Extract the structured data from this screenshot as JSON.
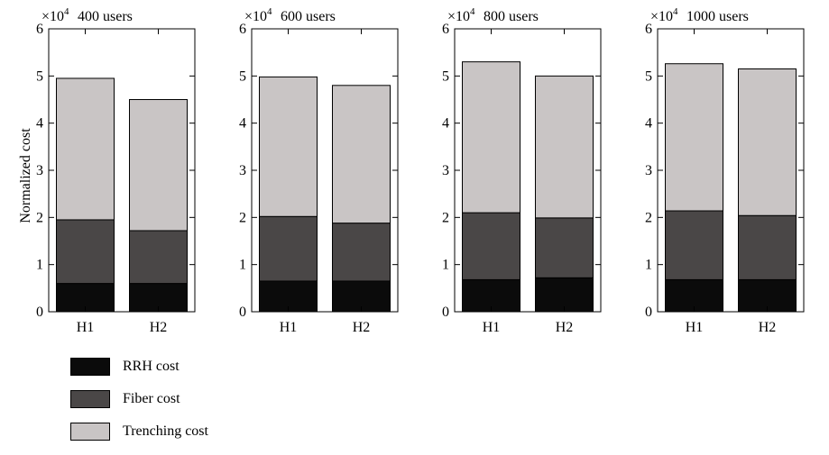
{
  "chart_data": {
    "type": "bar",
    "stacked": true,
    "ylabel": "Normalized cost",
    "y_multiplier": "×10",
    "y_multiplier_exp": "4",
    "ylim": [
      0,
      6
    ],
    "yticks": [
      "0",
      "1",
      "2",
      "3",
      "4",
      "5",
      "6"
    ],
    "categories": [
      "H1",
      "H2"
    ],
    "series_order": [
      "RRH cost",
      "Fiber cost",
      "Trenching cost"
    ],
    "colors": {
      "RRH cost": "#0b0b0b",
      "Fiber cost": "#4a4747",
      "Trenching cost": "#c9c5c5"
    },
    "panels": [
      {
        "title": "400 users",
        "series": [
          {
            "name": "RRH cost",
            "values": [
              0.6,
              0.6
            ]
          },
          {
            "name": "Fiber cost",
            "values": [
              1.35,
              1.12
            ]
          },
          {
            "name": "Trenching cost",
            "values": [
              3.0,
              2.78
            ]
          }
        ]
      },
      {
        "title": "600 users",
        "series": [
          {
            "name": "RRH cost",
            "values": [
              0.65,
              0.65
            ]
          },
          {
            "name": "Fiber cost",
            "values": [
              1.37,
              1.23
            ]
          },
          {
            "name": "Trenching cost",
            "values": [
              2.96,
              2.92
            ]
          }
        ]
      },
      {
        "title": "800 users",
        "series": [
          {
            "name": "RRH cost",
            "values": [
              0.68,
              0.72
            ]
          },
          {
            "name": "Fiber cost",
            "values": [
              1.42,
              1.27
            ]
          },
          {
            "name": "Trenching cost",
            "values": [
              3.2,
              3.01
            ]
          }
        ]
      },
      {
        "title": "1000 users",
        "series": [
          {
            "name": "RRH cost",
            "values": [
              0.68,
              0.68
            ]
          },
          {
            "name": "Fiber cost",
            "values": [
              1.46,
              1.36
            ]
          },
          {
            "name": "Trenching cost",
            "values": [
              3.12,
              3.11
            ]
          }
        ]
      }
    ]
  },
  "legend": {
    "items": [
      {
        "label": "RRH cost"
      },
      {
        "label": "Fiber cost"
      },
      {
        "label": "Trenching cost"
      }
    ]
  }
}
